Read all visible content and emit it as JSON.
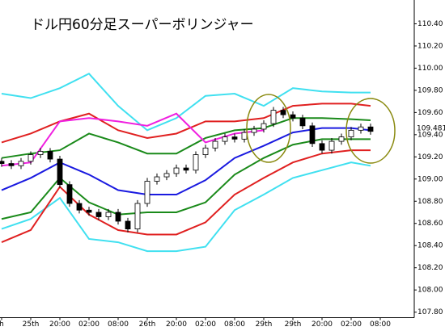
{
  "chart_data": {
    "type": "candlestick",
    "title": "ドル円60分足スーパーボリンジャー",
    "x": [
      0,
      2,
      4,
      6,
      8,
      10,
      12,
      14,
      16,
      18,
      20,
      22,
      24,
      26,
      28,
      30,
      32,
      34,
      36,
      38,
      40,
      42,
      44,
      46,
      48,
      50,
      52,
      54,
      56,
      58,
      60,
      62,
      64,
      66,
      68,
      70,
      72,
      74,
      76
    ],
    "open": [
      109.16,
      109.14,
      109.12,
      109.16,
      109.22,
      109.25,
      109.18,
      108.95,
      108.78,
      108.72,
      108.7,
      108.66,
      108.7,
      108.62,
      108.55,
      108.78,
      108.98,
      109.02,
      109.05,
      109.1,
      109.08,
      109.22,
      109.28,
      109.34,
      109.38,
      109.36,
      109.42,
      109.45,
      109.5,
      109.62,
      109.58,
      109.55,
      109.48,
      109.32,
      109.26,
      109.34,
      109.38,
      109.44,
      109.47
    ],
    "high": [
      109.19,
      109.17,
      109.19,
      109.25,
      109.28,
      109.28,
      109.21,
      108.98,
      108.81,
      108.75,
      108.73,
      108.73,
      108.73,
      108.65,
      108.81,
      109.01,
      109.05,
      109.08,
      109.13,
      109.13,
      109.25,
      109.31,
      109.37,
      109.41,
      109.41,
      109.45,
      109.48,
      109.53,
      109.65,
      109.65,
      109.61,
      109.58,
      109.51,
      109.35,
      109.37,
      109.41,
      109.47,
      109.5,
      109.5
    ],
    "low": [
      109.11,
      109.09,
      109.09,
      109.13,
      109.19,
      109.15,
      108.92,
      108.75,
      108.69,
      108.67,
      108.63,
      108.63,
      108.59,
      108.52,
      108.52,
      108.75,
      108.95,
      108.99,
      109.02,
      109.05,
      109.05,
      109.19,
      109.25,
      109.31,
      109.33,
      109.33,
      109.39,
      109.42,
      109.47,
      109.55,
      109.52,
      109.45,
      109.29,
      109.23,
      109.23,
      109.31,
      109.35,
      109.41,
      109.4
    ],
    "close": [
      109.14,
      109.12,
      109.16,
      109.22,
      109.25,
      109.18,
      108.95,
      108.78,
      108.72,
      108.7,
      108.66,
      108.7,
      108.62,
      108.55,
      108.78,
      108.98,
      109.02,
      109.05,
      109.1,
      109.08,
      109.22,
      109.28,
      109.34,
      109.38,
      109.36,
      109.42,
      109.45,
      109.5,
      109.62,
      109.58,
      109.55,
      109.48,
      109.32,
      109.26,
      109.34,
      109.38,
      109.44,
      109.47,
      109.43
    ],
    "up_color": "#ffffff",
    "down_color": "#000000",
    "lines": [
      {
        "color": "#40e0f0",
        "x": [
          0,
          6,
          12,
          18,
          24,
          30,
          36,
          42,
          48,
          54,
          60,
          66,
          72,
          76
        ],
        "values": [
          109.77,
          109.73,
          109.82,
          109.95,
          109.66,
          109.44,
          109.55,
          109.75,
          109.77,
          109.66,
          109.82,
          109.79,
          109.78,
          109.78
        ]
      },
      {
        "color": "#40e0f0",
        "x": [
          0,
          6,
          12,
          18,
          24,
          30,
          36,
          42,
          48,
          54,
          60,
          66,
          72,
          76
        ],
        "values": [
          108.55,
          108.64,
          108.83,
          108.46,
          108.43,
          108.35,
          108.35,
          108.39,
          108.72,
          108.86,
          109.01,
          109.08,
          109.15,
          109.12
        ]
      },
      {
        "color": "#e02020",
        "x": [
          0,
          6,
          12,
          18,
          24,
          30,
          36,
          42,
          48,
          54,
          60,
          66,
          72,
          76
        ],
        "values": [
          109.33,
          109.41,
          109.52,
          109.59,
          109.44,
          109.37,
          109.41,
          109.52,
          109.52,
          109.55,
          109.66,
          109.68,
          109.68,
          109.66
        ]
      },
      {
        "color": "#e02020",
        "x": [
          0,
          6,
          12,
          18,
          24,
          30,
          36,
          42,
          48,
          54,
          60,
          66,
          72,
          76
        ],
        "values": [
          108.43,
          108.54,
          108.93,
          108.68,
          108.54,
          108.5,
          108.5,
          108.61,
          108.86,
          109.01,
          109.15,
          109.23,
          109.26,
          109.26
        ]
      },
      {
        "color": "#1a8a1a",
        "x": [
          0,
          6,
          12,
          18,
          24,
          30,
          36,
          42,
          48,
          54,
          60,
          66,
          72,
          76
        ],
        "values": [
          109.19,
          109.23,
          109.26,
          109.41,
          109.33,
          109.23,
          109.23,
          109.37,
          109.44,
          109.46,
          109.55,
          109.55,
          109.54,
          109.53
        ]
      },
      {
        "color": "#1a8a1a",
        "x": [
          0,
          6,
          12,
          18,
          24,
          30,
          36,
          42,
          48,
          54,
          60,
          66,
          72,
          76
        ],
        "values": [
          108.64,
          108.7,
          109.01,
          108.79,
          108.68,
          108.7,
          108.7,
          108.79,
          109.04,
          109.19,
          109.31,
          109.36,
          109.36,
          109.36
        ]
      },
      {
        "color": "#1a1ae0",
        "x": [
          0,
          6,
          12,
          18,
          24,
          30,
          36,
          42,
          48,
          54,
          60,
          66,
          72,
          76
        ],
        "values": [
          108.9,
          109.01,
          109.15,
          109.04,
          108.9,
          108.86,
          108.86,
          108.99,
          109.19,
          109.3,
          109.42,
          109.46,
          109.46,
          109.44
        ]
      },
      {
        "color": "#f020e0",
        "x": [
          0,
          6,
          12,
          18,
          24,
          30,
          36,
          42,
          48,
          54
        ],
        "values": [
          109.12,
          109.15,
          109.52,
          109.55,
          109.52,
          109.48,
          109.59,
          109.33,
          109.41,
          109.44
        ]
      }
    ],
    "price_label": "109.481",
    "price_label_color": "#e02020",
    "xlim": [
      0,
      85
    ],
    "ylim": [
      107.75,
      110.6
    ],
    "xticks": [
      {
        "value": 0,
        "label": "h"
      },
      {
        "value": 6,
        "label": "25th"
      },
      {
        "value": 12,
        "label": "20:00"
      },
      {
        "value": 18,
        "label": "02:00"
      },
      {
        "value": 24,
        "label": "08:00"
      },
      {
        "value": 30,
        "label": "26th"
      },
      {
        "value": 36,
        "label": "20:00"
      },
      {
        "value": 42,
        "label": "02:00"
      },
      {
        "value": 48,
        "label": "08:00"
      },
      {
        "value": 54,
        "label": "29th"
      },
      {
        "value": 60,
        "label": "29th"
      },
      {
        "value": 66,
        "label": "20:00"
      },
      {
        "value": 72,
        "label": "02:00"
      },
      {
        "value": 78,
        "label": "08:00"
      }
    ],
    "yticks": [
      {
        "value": 110.4,
        "label": "110.40"
      },
      {
        "value": 110.2,
        "label": "110.20"
      },
      {
        "value": 110.0,
        "label": "110.00"
      },
      {
        "value": 109.8,
        "label": "109.80"
      },
      {
        "value": 109.6,
        "label": "109.60"
      },
      {
        "value": 109.4,
        "label": "109.40"
      },
      {
        "value": 109.2,
        "label": "109.20"
      },
      {
        "value": 109.0,
        "label": "109.00"
      },
      {
        "value": 108.8,
        "label": "108.80"
      },
      {
        "value": 108.6,
        "label": "108.60"
      },
      {
        "value": 108.4,
        "label": "108.40"
      },
      {
        "value": 108.2,
        "label": "108.20"
      },
      {
        "value": 108.0,
        "label": "108.00"
      },
      {
        "value": 107.8,
        "label": "107.80"
      }
    ]
  }
}
